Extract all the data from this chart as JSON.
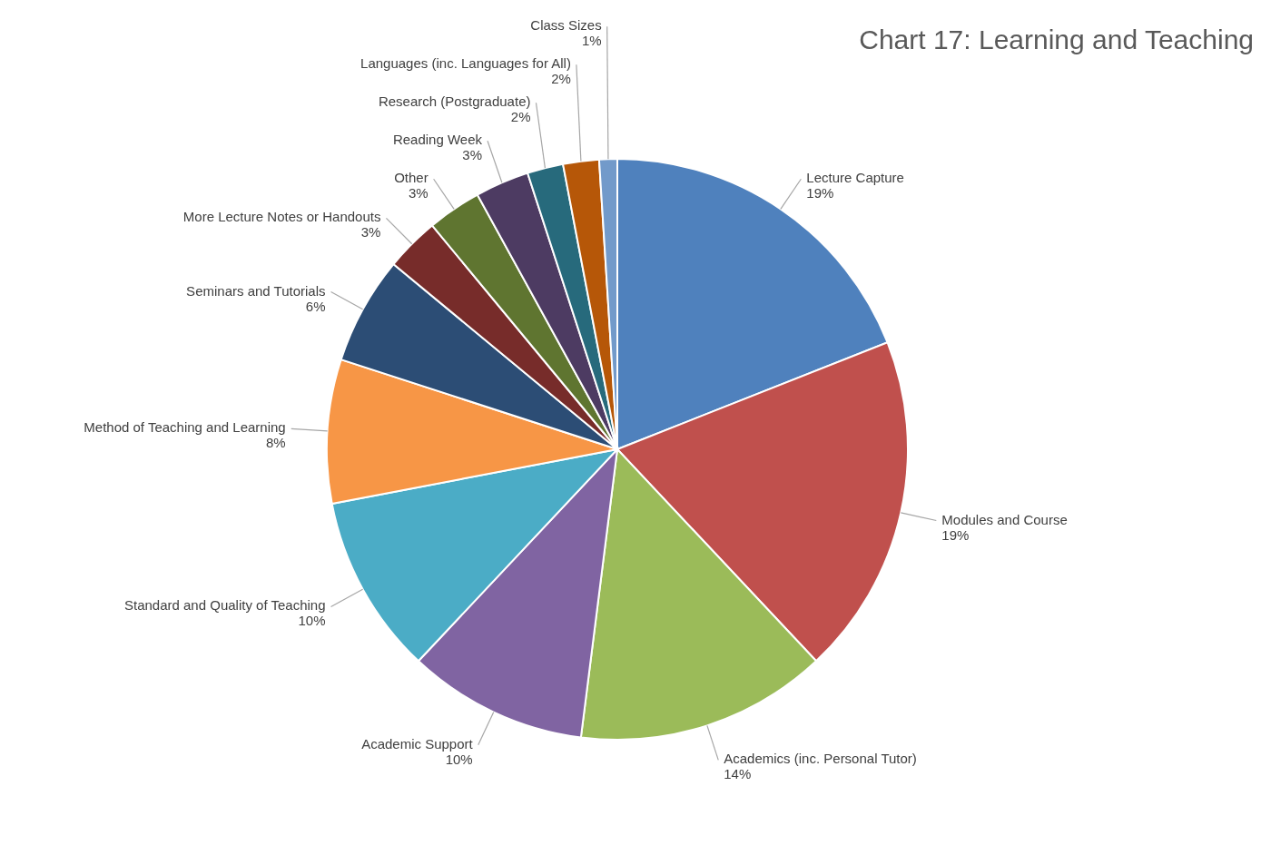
{
  "chart_data": {
    "type": "pie",
    "title": "Chart 17: Learning and Teaching",
    "categories": [
      "Lecture Capture",
      "Modules and Course",
      "Academics (inc. Personal Tutor)",
      "Academic Support",
      "Standard and Quality of Teaching",
      "Method of Teaching and Learning",
      "Seminars and Tutorials",
      "More Lecture Notes or Handouts",
      "Other",
      "Reading Week",
      "Research (Postgraduate)",
      "Languages (inc. Languages for All)",
      "Class Sizes"
    ],
    "values": [
      19,
      19,
      14,
      10,
      10,
      8,
      6,
      3,
      3,
      3,
      2,
      2,
      1
    ],
    "value_labels": [
      "19%",
      "19%",
      "14%",
      "10%",
      "10%",
      "8%",
      "6%",
      "3%",
      "3%",
      "3%",
      "2%",
      "2%",
      "1%"
    ],
    "colors": [
      "#4f81bd",
      "#c0504d",
      "#9bbb59",
      "#8064a2",
      "#4bacc6",
      "#f79646",
      "#2c4d75",
      "#772c2a",
      "#5f7530",
      "#4d3b62",
      "#276a7c",
      "#b65708",
      "#729aca"
    ]
  }
}
